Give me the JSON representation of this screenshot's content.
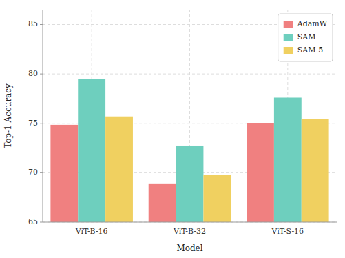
{
  "chart_data": {
    "type": "bar",
    "categories": [
      "ViT-B-16",
      "ViT-B-32",
      "ViT-S-16"
    ],
    "series": [
      {
        "name": "AdamW",
        "color": "#F08080",
        "values": [
          74.85,
          68.85,
          75.0
        ]
      },
      {
        "name": "SAM",
        "color": "#6ECFBE",
        "values": [
          79.5,
          72.75,
          77.6
        ]
      },
      {
        "name": "SAM-5",
        "color": "#F0D060",
        "values": [
          75.7,
          69.8,
          75.4
        ]
      }
    ],
    "xlabel": "Model",
    "ylabel": "Top-1 Accuracy",
    "ylim": [
      65,
      86.5
    ],
    "yticks": [
      65,
      70,
      75,
      80,
      85
    ],
    "grid": true,
    "legend": "upper right"
  }
}
